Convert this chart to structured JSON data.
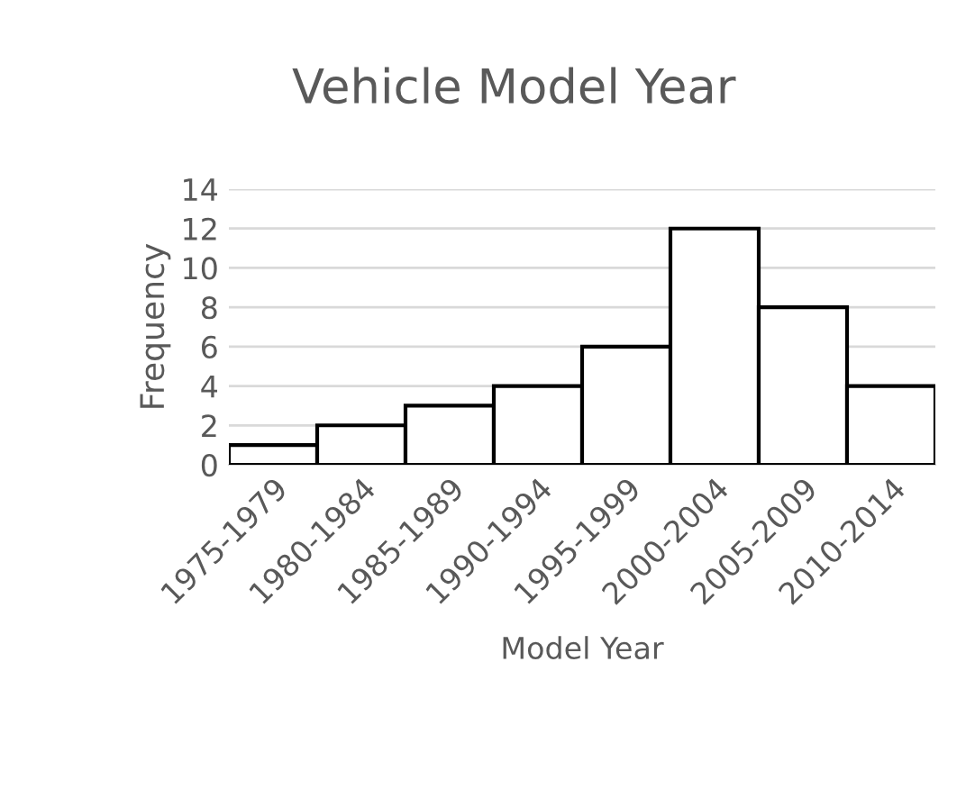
{
  "chart_data": {
    "type": "bar",
    "title": "Vehicle Model Year",
    "xlabel": "Model Year",
    "ylabel": "Frequency",
    "categories": [
      "1975-1979",
      "1980-1984",
      "1985-1989",
      "1990-1994",
      "1995-1999",
      "2000-2004",
      "2005-2009",
      "2010-2014"
    ],
    "values": [
      1,
      2,
      3,
      4,
      6,
      12,
      8,
      4
    ],
    "color": "#ffffff",
    "ylim": [
      0,
      14
    ],
    "yticks": [
      0,
      2,
      4,
      6,
      8,
      10,
      12,
      14
    ],
    "grid": "y"
  }
}
